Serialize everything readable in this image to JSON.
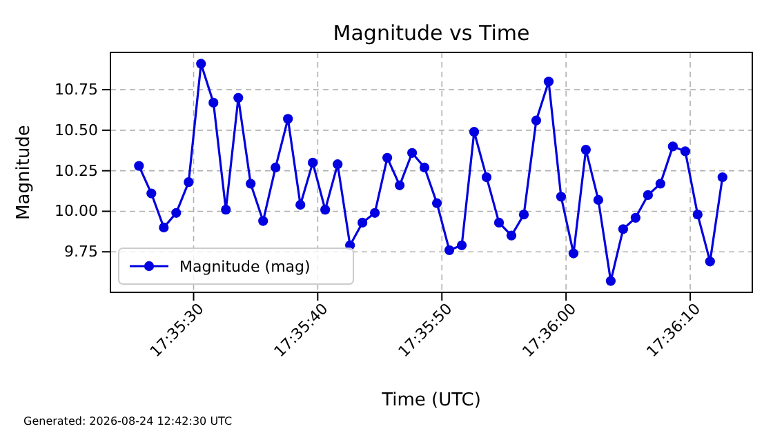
{
  "chart_data": {
    "type": "line",
    "title": "Magnitude vs Time",
    "xlabel": "Time (UTC)",
    "ylabel": "Magnitude",
    "annotations": [
      "Generated: 2026-08-24 12:42:30 UTC"
    ],
    "x": [
      17.590444,
      17.590722,
      17.591,
      17.591278,
      17.591556,
      17.591833,
      17.592111,
      17.592389,
      17.592667,
      17.592944,
      17.593222,
      17.5935,
      17.593778,
      17.594056,
      17.594333,
      17.594611,
      17.594889,
      17.595167,
      17.595444,
      17.595722,
      17.596,
      17.596278,
      17.596556,
      17.596833,
      17.597111,
      17.597389,
      17.597667,
      17.597944,
      17.598222,
      17.5985,
      17.598778,
      17.599056,
      17.599333,
      17.599611,
      17.599889,
      17.600167,
      17.600444,
      17.600722,
      17.601,
      17.601278,
      17.601556,
      17.601833,
      17.602111,
      17.602389,
      17.602667,
      17.602944,
      17.603222,
      17.6035
    ],
    "series": [
      {
        "name": "Magnitude (mag)",
        "color": "#0000e0",
        "values": [
          10.28,
          10.11,
          9.9,
          9.99,
          10.18,
          10.91,
          10.67,
          10.01,
          10.7,
          10.17,
          9.94,
          10.27,
          10.57,
          10.04,
          10.3,
          10.01,
          10.29,
          9.79,
          9.93,
          9.99,
          10.33,
          10.16,
          10.36,
          10.27,
          10.05,
          9.76,
          9.79,
          10.49,
          10.21,
          9.93,
          9.85,
          9.98,
          10.56,
          10.8,
          10.09,
          9.74,
          10.38,
          10.07,
          9.57,
          9.89,
          9.96,
          10.1,
          10.17,
          10.4,
          10.37,
          9.98,
          9.69,
          10.21
        ]
      }
    ],
    "xlim": [
      17.589806,
      17.604167
    ],
    "xticks": [
      {
        "value": 17.591667,
        "label": "17:35:30"
      },
      {
        "value": 17.594444,
        "label": "17:35:40"
      },
      {
        "value": 17.597222,
        "label": "17:35:50"
      },
      {
        "value": 17.6,
        "label": "17:36:00"
      },
      {
        "value": 17.602778,
        "label": "17:36:10"
      }
    ],
    "ylim": [
      9.5,
      10.98
    ],
    "yticks": [
      9.75,
      {
        "value": 10,
        "label": "10.00"
      },
      10.25,
      {
        "value": 10.5,
        "label": "10.50"
      },
      10.75
    ],
    "grid": true,
    "legend": "bottom left",
    "marker": "circle",
    "line_style": "solid"
  }
}
